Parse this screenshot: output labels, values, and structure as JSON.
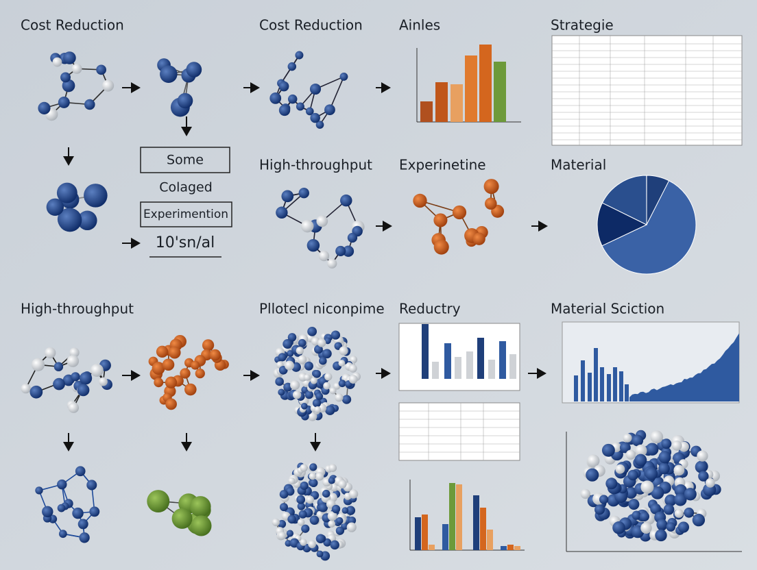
{
  "panels": [
    {
      "title": "Cost Reduction"
    },
    {
      "title": "Cost Reduction"
    },
    {
      "title": "Ainles"
    },
    {
      "title": "Strategie"
    },
    {
      "title": "High-throughput"
    },
    {
      "title": "Experinetine"
    },
    {
      "title": "Material"
    },
    {
      "title": "High-throughput"
    },
    {
      "title": "Pllotecl niconpime"
    },
    {
      "title": "Reductry"
    },
    {
      "title": "Material Sciction"
    }
  ],
  "boxes": {
    "top": "Some",
    "middle": "Colaged",
    "bottom": "Experimention",
    "footer": "10'sn/al"
  }
}
